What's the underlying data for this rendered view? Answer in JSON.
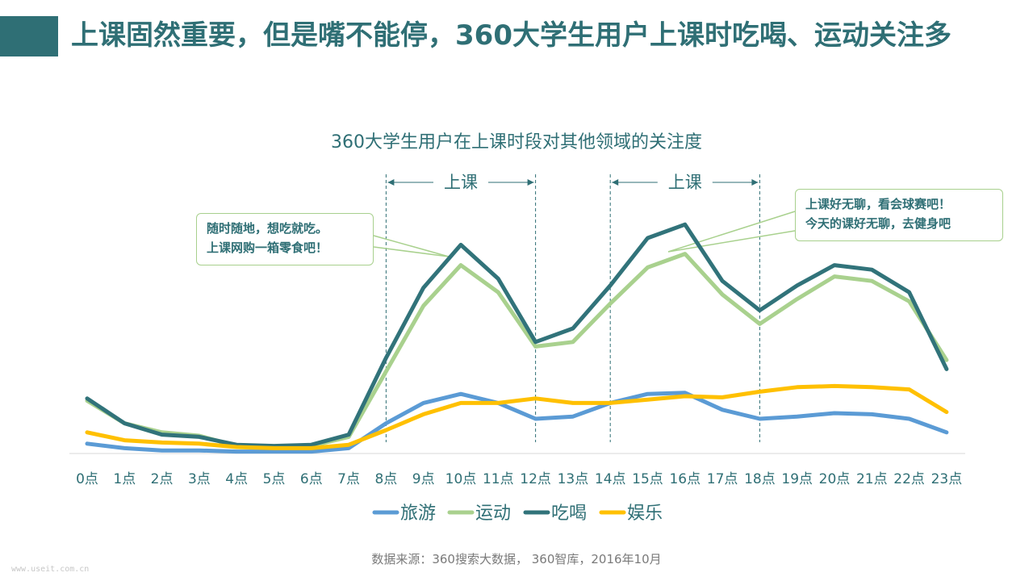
{
  "header": {
    "title": "上课固然重要，但是嘴不能停，360大学生用户上课时吃喝、运动关注多"
  },
  "callouts": {
    "left_line1": "随时随地，想吃就吃。",
    "left_line2": "上课网购一箱零食吧！",
    "right_line1": "上课好无聊，看会球赛吧！",
    "right_line2": "今天的课好无聊，去健身吧"
  },
  "footer": {
    "source": "数据来源：360搜索大数据， 360智库，2016年10月",
    "watermark": "www.useit.com.cn"
  },
  "colors": {
    "brand": "#2f6f75",
    "旅游": "#5b9bd5",
    "运动": "#a9d18e",
    "吃喝": "#31737a",
    "娱乐": "#ffc000"
  },
  "chart_data": {
    "type": "line",
    "title": "360大学生用户在上课时段对其他领域的关注度",
    "xlabel": "",
    "ylabel": "",
    "grid": false,
    "legend": "bottom",
    "categories": [
      "0点",
      "1点",
      "2点",
      "3点",
      "4点",
      "5点",
      "6点",
      "7点",
      "8点",
      "9点",
      "10点",
      "11点",
      "12点",
      "13点",
      "14点",
      "15点",
      "16点",
      "17点",
      "18点",
      "19点",
      "20点",
      "21点",
      "22点",
      "23点"
    ],
    "ylim": [
      0,
      100
    ],
    "series": [
      {
        "name": "旅游",
        "values": [
          4,
          2,
          1,
          1,
          0.5,
          0.5,
          0.5,
          2,
          13,
          22,
          26,
          22,
          15,
          16,
          22,
          26,
          26.5,
          19,
          15,
          16,
          17.5,
          17,
          15,
          9
        ]
      },
      {
        "name": "运动",
        "values": [
          23,
          13,
          9,
          7.5,
          3,
          2.5,
          3,
          7,
          36,
          65,
          83,
          71,
          47,
          49,
          66,
          82,
          88,
          70,
          57,
          68,
          78,
          76,
          67,
          41
        ]
      },
      {
        "name": "吃喝",
        "values": [
          24,
          13,
          8,
          7,
          3.5,
          3,
          3.5,
          8,
          42,
          73,
          92,
          77,
          49,
          55,
          74,
          95,
          101,
          76,
          63,
          74,
          83,
          81,
          71,
          37
        ]
      },
      {
        "name": "娱乐",
        "values": [
          9,
          5.5,
          4.5,
          4,
          2.5,
          2,
          2,
          3.5,
          10,
          17,
          22,
          22,
          24,
          22,
          22,
          23.5,
          25,
          24.5,
          27,
          29,
          29.5,
          29,
          28,
          18
        ]
      }
    ],
    "annotations": [
      {
        "label": "上课",
        "from": "8点",
        "to": "12点"
      },
      {
        "label": "上课",
        "from": "14点",
        "to": "18点"
      }
    ]
  }
}
